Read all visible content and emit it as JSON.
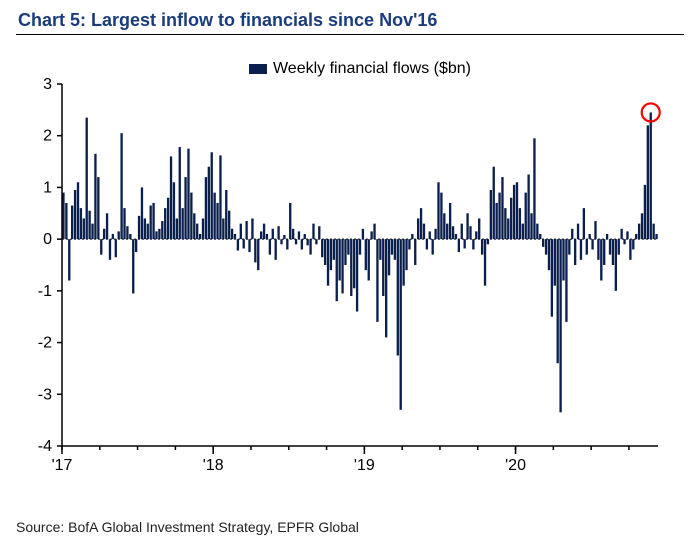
{
  "title": "Chart 5: Largest inflow to financials since Nov'16",
  "title_color": "#1a3c7c",
  "title_fontsize": 18,
  "legend": {
    "label": "Weekly financial flows ($bn)",
    "swatch_color": "#0b1f4d",
    "fontsize": 16
  },
  "chart": {
    "type": "bar",
    "bar_color": "#0b1f4d",
    "background_color": "#ffffff",
    "axis_color": "#000000",
    "ylim": [
      -4,
      3
    ],
    "ytick_step": 1,
    "ytick_labels": [
      "-4",
      "-3",
      "-2",
      "-1",
      "0",
      "1",
      "2",
      "3"
    ],
    "ytick_fontsize": 16,
    "x_major_ticks": [
      0,
      52,
      104,
      156
    ],
    "x_tick_labels": [
      "'17",
      "'18",
      "'19",
      "'20"
    ],
    "xtick_fontsize": 16,
    "zero_dashed": true,
    "n_points": 205,
    "highlight": {
      "index": 202,
      "circle_stroke": "#ff0000",
      "circle_stroke_width": 2.2,
      "circle_r": 9
    },
    "series": [
      0.9,
      0.7,
      -0.8,
      0.65,
      0.95,
      1.1,
      0.6,
      0.4,
      2.35,
      0.55,
      0.3,
      1.65,
      1.2,
      -0.3,
      0.2,
      0.5,
      -0.4,
      0.1,
      -0.35,
      0.15,
      2.05,
      0.6,
      0.25,
      0.1,
      -1.05,
      -0.25,
      0.45,
      1.0,
      0.4,
      0.3,
      0.65,
      0.7,
      0.15,
      0.2,
      0.35,
      0.6,
      0.8,
      1.6,
      1.1,
      0.4,
      1.78,
      0.6,
      1.2,
      1.75,
      0.9,
      0.5,
      0.3,
      0.1,
      0.4,
      1.2,
      1.4,
      1.68,
      0.9,
      0.7,
      1.62,
      0.4,
      0.95,
      0.55,
      0.2,
      0.1,
      -0.22,
      0.3,
      -0.18,
      0.35,
      -0.25,
      0.4,
      -0.45,
      -0.6,
      0.15,
      0.3,
      0.1,
      -0.3,
      0.2,
      -0.4,
      0.25,
      -0.1,
      0.08,
      -0.2,
      0.7,
      0.2,
      -0.1,
      0.15,
      -0.2,
      0.1,
      -0.12,
      -0.3,
      0.3,
      -0.1,
      0.25,
      -0.35,
      -0.5,
      -0.9,
      -0.6,
      -0.4,
      -1.2,
      -0.8,
      -1.05,
      -0.5,
      -0.3,
      -1.1,
      -0.95,
      -1.4,
      -0.3,
      0.2,
      -0.6,
      -0.8,
      0.15,
      0.3,
      -1.6,
      -0.4,
      -1.1,
      -1.9,
      -0.7,
      -0.3,
      -0.4,
      -2.25,
      -3.3,
      -0.9,
      -0.6,
      -0.2,
      0.1,
      -0.5,
      0.4,
      0.6,
      0.3,
      -0.2,
      0.15,
      -0.3,
      0.2,
      1.1,
      0.9,
      0.5,
      0.3,
      0.7,
      0.25,
      0.1,
      -0.25,
      0.3,
      -0.18,
      0.5,
      0.25,
      -0.2,
      0.15,
      0.4,
      -0.3,
      -0.9,
      -0.1,
      0.95,
      1.4,
      0.7,
      0.9,
      1.2,
      0.6,
      0.4,
      0.8,
      1.05,
      1.1,
      0.6,
      0.3,
      0.9,
      1.25,
      0.5,
      1.95,
      0.3,
      0.1,
      -0.15,
      -0.3,
      -0.6,
      -1.5,
      -0.9,
      -2.4,
      -3.35,
      -0.8,
      -1.6,
      -0.3,
      0.2,
      -0.5,
      0.3,
      -0.4,
      0.6,
      -0.3,
      0.1,
      -0.2,
      0.35,
      -0.4,
      -0.8,
      -0.5,
      0.1,
      -0.3,
      -0.5,
      -1.0,
      -0.3,
      0.2,
      -0.1,
      0.15,
      -0.4,
      -0.2,
      0.1,
      0.3,
      0.5,
      1.05,
      2.2,
      2.45,
      0.3,
      0.1
    ]
  },
  "source": "Source: BofA Global Investment Strategy, EPFR Global",
  "source_fontsize": 14
}
